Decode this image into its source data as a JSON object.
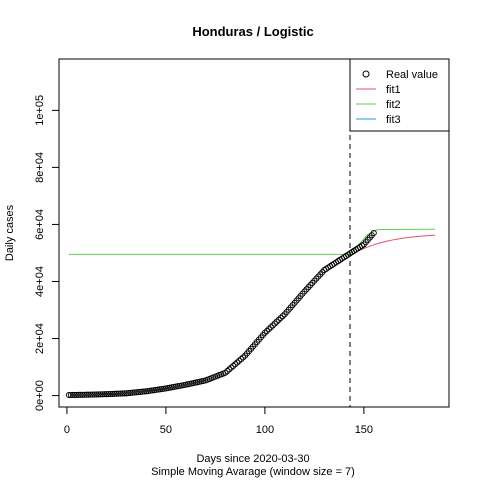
{
  "chart_data": {
    "type": "line",
    "title": "Honduras / Logistic",
    "xlabel": "Days since 2020-03-30",
    "xlabel_sub": "Simple Moving Avarage (window size = 7)",
    "ylabel": "Daily cases",
    "xlim": [
      -4,
      193
    ],
    "ylim": [
      -4000,
      118000
    ],
    "x_ticks": [
      0,
      50,
      100,
      150
    ],
    "y_ticks": [
      0,
      20000,
      40000,
      60000,
      80000,
      100000
    ],
    "y_tick_labels": [
      "0e+00",
      "2e+04",
      "4e+04",
      "6e+04",
      "8e+04",
      "1e+05"
    ],
    "vline_x": 143,
    "legend": {
      "position": "top-right",
      "entries": [
        "Real value",
        "fit1",
        "fit2",
        "fit3"
      ]
    },
    "real_value": {
      "name": "Real value",
      "x_range": [
        1,
        155
      ],
      "anchors": [
        [
          1,
          200
        ],
        [
          10,
          300
        ],
        [
          20,
          500
        ],
        [
          30,
          800
        ],
        [
          40,
          1500
        ],
        [
          50,
          2500
        ],
        [
          60,
          3800
        ],
        [
          70,
          5300
        ],
        [
          80,
          8000
        ],
        [
          90,
          14000
        ],
        [
          100,
          22000
        ],
        [
          110,
          28500
        ],
        [
          120,
          36500
        ],
        [
          130,
          44000
        ],
        [
          140,
          48500
        ],
        [
          150,
          53000
        ],
        [
          155,
          57000
        ]
      ]
    },
    "fit1": {
      "name": "fit1",
      "color": "#DF536B",
      "x_range": [
        143,
        186
      ],
      "start": 49000,
      "asymptote": 57000,
      "rate": 0.055
    },
    "fit2": {
      "name": "fit2",
      "color": "#61D04F",
      "segments": [
        [
          [
            1,
            49500
          ],
          [
            143,
            49500
          ]
        ],
        [
          [
            143,
            49500
          ],
          [
            152,
            56500
          ],
          [
            157,
            58200
          ],
          [
            186,
            58300
          ]
        ]
      ]
    },
    "fit3": {
      "name": "fit3",
      "color": "#2297E6"
    }
  }
}
